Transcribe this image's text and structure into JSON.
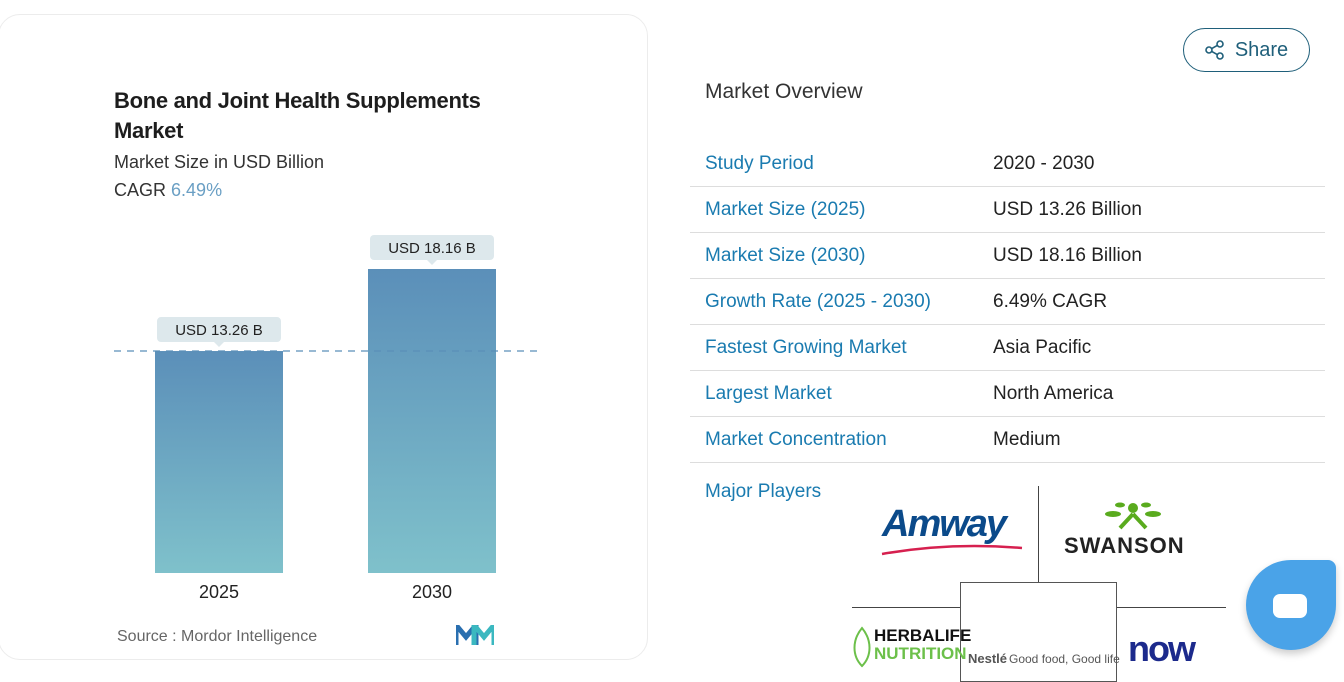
{
  "left_card": {
    "title": "Bone and Joint Health Supplements Market",
    "subtitle": "Market Size in USD Billion",
    "cagr_label": "CAGR",
    "cagr_value": "6.49%",
    "source": "Source : Mordor Intelligence"
  },
  "chart_data": {
    "type": "bar",
    "categories": [
      "2025",
      "2030"
    ],
    "values": [
      13.26,
      18.16
    ],
    "data_labels": [
      "USD 13.26 B",
      "USD 18.16 B"
    ],
    "reference_line": 13.26,
    "title": "Bone and Joint Health Supplements Market",
    "ylabel": "Market Size in USD Billion",
    "ylim": [
      0,
      18.16
    ],
    "colors": {
      "top": "#5b8fb9",
      "bottom": "#7fc1cb"
    }
  },
  "share": {
    "label": "Share"
  },
  "overview": {
    "title": "Market Overview",
    "rows": [
      {
        "k": "Study Period",
        "v": "2020 - 2030"
      },
      {
        "k": "Market Size (2025)",
        "v": "USD 13.26 Billion"
      },
      {
        "k": "Market Size (2030)",
        "v": "USD 18.16 Billion"
      },
      {
        "k": "Growth Rate (2025 - 2030)",
        "v": "6.49% CAGR"
      },
      {
        "k": "Fastest Growing Market",
        "v": "Asia Pacific"
      },
      {
        "k": "Largest Market",
        "v": "North America"
      },
      {
        "k": "Market Concentration",
        "v": "Medium"
      }
    ],
    "major_players_label": "Major Players",
    "players": [
      "Amway",
      "SWANSON",
      "HERBALIFE",
      "NUTRITION",
      "Nestlé",
      "Good food, Good life",
      "now"
    ]
  }
}
